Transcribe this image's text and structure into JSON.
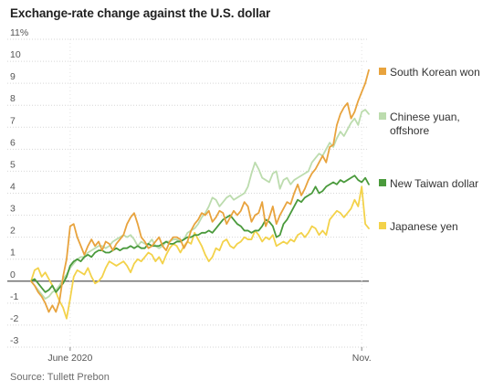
{
  "title": "Exchange-rate change against the U.S. dollar",
  "source": "Source: Tullett Prebon",
  "chart_data": {
    "type": "line",
    "title": "Exchange-rate change against the U.S. dollar",
    "ylim": [
      -3,
      11
    ],
    "y_ticks": [
      {
        "value": 11,
        "label": "11%"
      },
      {
        "value": 10,
        "label": "10"
      },
      {
        "value": 9,
        "label": "9"
      },
      {
        "value": 8,
        "label": "8"
      },
      {
        "value": 7,
        "label": "7"
      },
      {
        "value": 6,
        "label": "6"
      },
      {
        "value": 5,
        "label": "5"
      },
      {
        "value": 4,
        "label": "4"
      },
      {
        "value": 3,
        "label": "3"
      },
      {
        "value": 2,
        "label": "2"
      },
      {
        "value": 1,
        "label": "1"
      },
      {
        "value": 0,
        "label": "0"
      },
      {
        "value": -1,
        "label": "-1"
      },
      {
        "value": -2,
        "label": "-2"
      },
      {
        "value": -3,
        "label": "-3"
      }
    ],
    "x_ticks": [
      {
        "index": 11,
        "label": "June 2020"
      },
      {
        "index": 93,
        "label": "Nov."
      }
    ],
    "grid": "horizontal dotted",
    "legend": "right",
    "series": [
      {
        "name": "South Korean won",
        "color": "#e8a33d",
        "values": [
          0.0,
          -0.2,
          -0.5,
          -0.7,
          -1.0,
          -1.4,
          -1.1,
          -1.4,
          -0.9,
          0.2,
          1.0,
          2.5,
          2.6,
          2.0,
          1.6,
          1.2,
          1.6,
          1.9,
          1.6,
          1.8,
          1.4,
          1.8,
          1.7,
          1.4,
          1.7,
          1.9,
          2.1,
          2.6,
          2.9,
          3.1,
          2.6,
          2.0,
          1.8,
          1.5,
          1.6,
          1.8,
          2.0,
          1.6,
          1.4,
          1.8,
          2.0,
          2.0,
          1.9,
          1.5,
          1.8,
          2.3,
          2.6,
          2.8,
          3.1,
          3.0,
          3.2,
          2.7,
          2.9,
          3.2,
          3.1,
          2.6,
          2.9,
          3.2,
          3.0,
          3.2,
          3.6,
          3.4,
          2.7,
          3.0,
          3.1,
          3.6,
          2.5,
          2.9,
          3.4,
          2.6,
          3.0,
          3.3,
          3.6,
          3.5,
          4.0,
          4.4,
          3.9,
          4.2,
          4.6,
          4.9,
          5.1,
          5.4,
          5.7,
          5.4,
          6.1,
          6.2,
          7.1,
          7.6,
          7.9,
          8.1,
          7.4,
          7.7,
          8.2,
          8.6,
          9.0,
          9.6
        ]
      },
      {
        "name": "Chinese yuan, offshore",
        "color": "#bcdcae",
        "values": [
          0.0,
          -0.2,
          -0.4,
          -0.6,
          -0.8,
          -0.7,
          -0.5,
          -0.4,
          -0.2,
          0.1,
          0.3,
          0.6,
          0.8,
          1.0,
          1.1,
          1.1,
          1.3,
          1.4,
          1.5,
          1.6,
          1.6,
          1.5,
          1.6,
          1.8,
          1.9,
          2.0,
          2.1,
          2.0,
          2.1,
          1.9,
          1.6,
          1.8,
          1.7,
          1.7,
          1.9,
          1.6,
          1.5,
          1.6,
          1.8,
          1.8,
          1.9,
          1.9,
          1.8,
          1.9,
          2.2,
          2.3,
          2.4,
          2.6,
          2.9,
          3.1,
          3.4,
          3.8,
          3.7,
          3.4,
          3.6,
          3.8,
          3.9,
          3.7,
          3.8,
          3.9,
          4.0,
          4.3,
          4.9,
          5.4,
          5.1,
          4.7,
          4.6,
          4.5,
          4.9,
          5.0,
          4.2,
          4.6,
          4.7,
          4.4,
          4.6,
          4.7,
          4.8,
          4.9,
          5.0,
          5.4,
          5.6,
          5.8,
          5.7,
          6.0,
          6.3,
          6.1,
          6.5,
          6.8,
          6.6,
          6.9,
          7.2,
          7.4,
          7.1,
          7.7,
          7.8,
          7.6
        ]
      },
      {
        "name": "New Taiwan dollar",
        "color": "#4a9a3c",
        "values": [
          0.0,
          0.1,
          -0.1,
          -0.3,
          -0.5,
          -0.4,
          -0.2,
          -0.5,
          -0.3,
          -0.1,
          0.2,
          0.7,
          0.9,
          1.0,
          0.9,
          1.1,
          1.2,
          1.1,
          1.3,
          1.4,
          1.4,
          1.3,
          1.3,
          1.4,
          1.5,
          1.4,
          1.5,
          1.5,
          1.6,
          1.5,
          1.6,
          1.5,
          1.5,
          1.7,
          1.6,
          1.6,
          1.6,
          1.7,
          1.8,
          1.7,
          1.7,
          1.8,
          1.8,
          1.9,
          2.0,
          2.0,
          2.1,
          2.1,
          2.2,
          2.2,
          2.3,
          2.2,
          2.4,
          2.6,
          2.8,
          2.9,
          3.0,
          2.8,
          2.6,
          2.5,
          2.3,
          2.3,
          2.2,
          2.3,
          2.3,
          2.5,
          2.8,
          2.7,
          2.5,
          2.0,
          2.1,
          2.6,
          2.8,
          3.1,
          3.4,
          3.7,
          3.6,
          3.8,
          3.9,
          4.0,
          4.3,
          4.0,
          4.1,
          4.3,
          4.4,
          4.5,
          4.4,
          4.6,
          4.5,
          4.6,
          4.7,
          4.8,
          4.6,
          4.5,
          4.7,
          4.4
        ]
      },
      {
        "name": "Japanese yen",
        "color": "#f3d24a",
        "values": [
          0.0,
          0.5,
          0.6,
          0.2,
          0.4,
          0.1,
          -0.2,
          -0.5,
          -0.9,
          -1.2,
          -1.7,
          -0.8,
          0.2,
          0.5,
          0.4,
          0.3,
          0.6,
          0.2,
          -0.1,
          0.0,
          0.2,
          0.6,
          0.9,
          0.8,
          0.7,
          0.8,
          0.9,
          0.7,
          0.4,
          0.8,
          1.0,
          0.9,
          1.1,
          1.3,
          1.2,
          0.9,
          1.1,
          0.8,
          1.2,
          1.5,
          1.7,
          1.6,
          1.3,
          1.6,
          1.8,
          1.7,
          2.2,
          1.9,
          1.6,
          1.2,
          0.9,
          1.1,
          1.5,
          1.4,
          1.8,
          1.9,
          1.6,
          1.5,
          1.7,
          1.8,
          2.0,
          1.9,
          1.9,
          2.3,
          2.1,
          1.8,
          2.0,
          1.9,
          2.1,
          1.6,
          1.7,
          1.8,
          1.7,
          1.9,
          1.8,
          2.1,
          2.2,
          2.0,
          2.2,
          2.5,
          2.4,
          2.1,
          2.3,
          2.1,
          2.8,
          3.0,
          3.2,
          3.1,
          2.9,
          3.1,
          3.3,
          3.7,
          3.4,
          4.3,
          2.6,
          2.4
        ]
      }
    ]
  }
}
